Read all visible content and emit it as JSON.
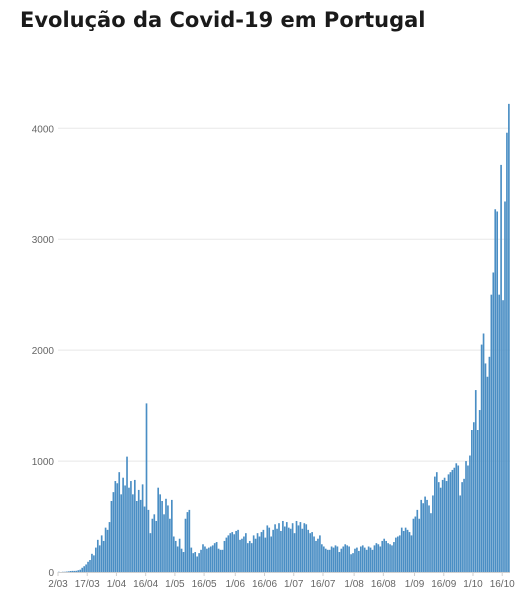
{
  "chart_data": {
    "type": "bar",
    "title": "Evolução da Covid-19 em Portugal",
    "xlabel": "",
    "ylabel": "",
    "ylim": [
      0,
      4300
    ],
    "yticks": [
      0,
      1000,
      2000,
      3000,
      4000
    ],
    "grid": true,
    "bar_color": "#4a8ec4",
    "x_tick_labels": [
      "2/03",
      "17/03",
      "1/04",
      "16/04",
      "1/05",
      "16/05",
      "1/06",
      "16/06",
      "1/07",
      "16/07",
      "1/08",
      "16/08",
      "1/09",
      "16/09",
      "1/10",
      "16/10"
    ],
    "x_tick_day_index": [
      0,
      15,
      30,
      45,
      60,
      75,
      91,
      106,
      121,
      136,
      152,
      167,
      183,
      198,
      213,
      228
    ],
    "start_date": "2020-03-02",
    "values": [
      2,
      0,
      2,
      2,
      4,
      6,
      9,
      10,
      10,
      11,
      16,
      21,
      38,
      52,
      68,
      92,
      108,
      164,
      150,
      220,
      290,
      240,
      330,
      280,
      400,
      380,
      450,
      640,
      720,
      820,
      800,
      900,
      700,
      850,
      780,
      1040,
      760,
      820,
      700,
      830,
      640,
      740,
      650,
      790,
      590,
      1520,
      560,
      350,
      480,
      520,
      460,
      760,
      700,
      640,
      520,
      660,
      600,
      480,
      650,
      320,
      280,
      230,
      300,
      210,
      180,
      480,
      540,
      560,
      220,
      170,
      180,
      140,
      170,
      200,
      250,
      230,
      210,
      220,
      230,
      240,
      260,
      270,
      210,
      200,
      200,
      280,
      310,
      330,
      350,
      360,
      340,
      370,
      380,
      290,
      300,
      320,
      350,
      260,
      280,
      260,
      330,
      300,
      350,
      320,
      360,
      380,
      310,
      420,
      400,
      320,
      380,
      430,
      390,
      440,
      370,
      460,
      410,
      450,
      400,
      390,
      440,
      350,
      460,
      420,
      450,
      390,
      440,
      430,
      380,
      350,
      360,
      320,
      280,
      300,
      330,
      250,
      230,
      210,
      200,
      200,
      230,
      220,
      240,
      230,
      180,
      210,
      230,
      250,
      240,
      230,
      160,
      170,
      210,
      220,
      190,
      230,
      240,
      220,
      200,
      230,
      220,
      200,
      240,
      260,
      250,
      230,
      280,
      300,
      280,
      260,
      250,
      240,
      270,
      310,
      320,
      330,
      400,
      370,
      400,
      380,
      360,
      330,
      480,
      500,
      560,
      480,
      650,
      620,
      680,
      650,
      600,
      530,
      690,
      860,
      900,
      810,
      760,
      830,
      850,
      820,
      880,
      900,
      920,
      940,
      980,
      960,
      690,
      810,
      840,
      1000,
      960,
      1050,
      1280,
      1350,
      1640,
      1280,
      1460,
      2050,
      2150,
      1880,
      1760,
      1940,
      2500,
      2700,
      3270,
      3250,
      2500,
      3670,
      2450,
      3340,
      3960,
      4220
    ]
  }
}
